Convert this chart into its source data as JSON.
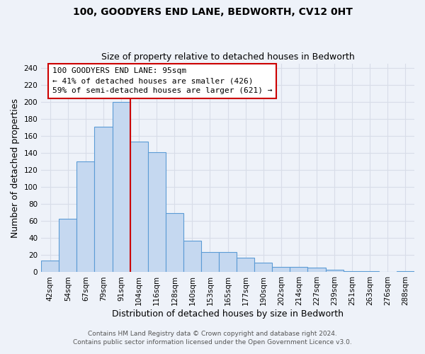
{
  "title": "100, GOODYERS END LANE, BEDWORTH, CV12 0HT",
  "subtitle": "Size of property relative to detached houses in Bedworth",
  "xlabel": "Distribution of detached houses by size in Bedworth",
  "ylabel": "Number of detached properties",
  "bar_labels": [
    "42sqm",
    "54sqm",
    "67sqm",
    "79sqm",
    "91sqm",
    "104sqm",
    "116sqm",
    "128sqm",
    "140sqm",
    "153sqm",
    "165sqm",
    "177sqm",
    "190sqm",
    "202sqm",
    "214sqm",
    "227sqm",
    "239sqm",
    "251sqm",
    "263sqm",
    "276sqm",
    "288sqm"
  ],
  "bar_values": [
    14,
    63,
    130,
    171,
    200,
    153,
    141,
    69,
    37,
    24,
    24,
    17,
    11,
    6,
    6,
    5,
    3,
    1,
    1,
    0,
    1
  ],
  "bar_color": "#c5d8f0",
  "bar_edge_color": "#5b9bd5",
  "ylim": [
    0,
    245
  ],
  "yticks": [
    0,
    20,
    40,
    60,
    80,
    100,
    120,
    140,
    160,
    180,
    200,
    220,
    240
  ],
  "vline_x": 4.5,
  "annotation_title": "100 GOODYERS END LANE: 95sqm",
  "annotation_line1": "← 41% of detached houses are smaller (426)",
  "annotation_line2": "59% of semi-detached houses are larger (621) →",
  "annotation_box_color": "#ffffff",
  "annotation_border_color": "#cc0000",
  "vline_color": "#cc0000",
  "footer1": "Contains HM Land Registry data © Crown copyright and database right 2024.",
  "footer2": "Contains public sector information licensed under the Open Government Licence v3.0.",
  "bg_color": "#eef2f9",
  "grid_color": "#d8dde8",
  "title_fontsize": 10,
  "subtitle_fontsize": 9,
  "axis_label_fontsize": 9,
  "tick_fontsize": 7.5,
  "footer_fontsize": 6.5,
  "annotation_fontsize": 8
}
